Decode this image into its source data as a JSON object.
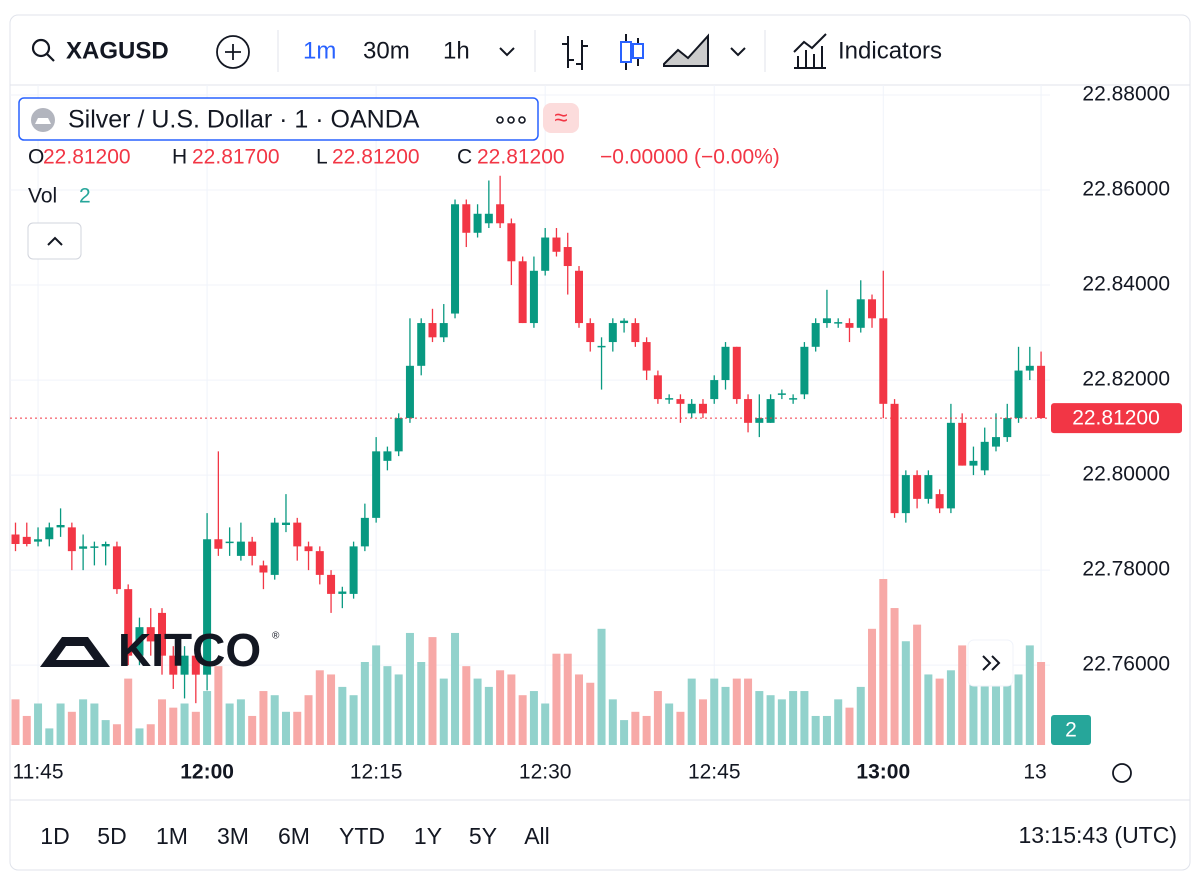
{
  "toolbar": {
    "symbol": "XAGUSD",
    "intervals": [
      "1m",
      "30m",
      "1h"
    ],
    "indicators": "Indicators"
  },
  "legend": {
    "title": "Silver / U.S. Dollar · 1 · OANDA",
    "ohlc": [
      {
        "key": "O",
        "value": "22.81200"
      },
      {
        "key": "H",
        "value": "22.81700"
      },
      {
        "key": "L",
        "value": "22.81200"
      },
      {
        "key": "C",
        "value": "22.81200"
      }
    ],
    "change": "−0.00000 (−0.00%)",
    "vol_label": "Vol",
    "vol_value": 2
  },
  "watermark": "KITCO",
  "ranges": [
    "1D",
    "5D",
    "1M",
    "3M",
    "6M",
    "YTD",
    "1Y",
    "5Y",
    "All"
  ],
  "clock": "13:15:43 (UTC)",
  "chart_data": {
    "type": "candlestick",
    "categories": [
      null,
      null,
      "11:45",
      null,
      null,
      null,
      null,
      null,
      null,
      null,
      null,
      null,
      null,
      null,
      null,
      null,
      null,
      "12:00",
      null,
      null,
      null,
      null,
      null,
      null,
      null,
      null,
      null,
      null,
      null,
      null,
      null,
      null,
      "12:15",
      null,
      null,
      null,
      null,
      null,
      null,
      null,
      null,
      null,
      null,
      null,
      null,
      null,
      null,
      "12:30",
      null,
      null,
      null,
      null,
      null,
      null,
      null,
      null,
      null,
      null,
      null,
      null,
      null,
      null,
      "12:45",
      null,
      null,
      null,
      null,
      null,
      null,
      null,
      null,
      null,
      null,
      null,
      null,
      null,
      null,
      "13:00",
      null,
      null,
      null,
      null,
      null,
      null,
      null,
      null,
      null,
      null,
      null,
      null,
      null,
      "13"
    ],
    "open": [
      22.7875,
      22.787,
      22.786,
      22.7865,
      22.789,
      22.789,
      22.7845,
      22.785,
      22.785,
      22.785,
      22.776,
      22.762,
      22.768,
      22.771,
      22.762,
      22.758,
      22.762,
      22.758,
      22.7865,
      22.786,
      22.783,
      22.786,
      22.781,
      22.779,
      22.7895,
      22.79,
      22.785,
      22.784,
      22.779,
      22.775,
      22.775,
      22.785,
      22.791,
      22.803,
      22.805,
      22.812,
      22.823,
      22.832,
      22.829,
      22.834,
      22.857,
      22.851,
      22.853,
      22.857,
      22.853,
      22.845,
      22.832,
      22.843,
      22.85,
      22.848,
      22.843,
      22.832,
      22.827,
      22.828,
      22.832,
      22.832,
      22.828,
      22.821,
      22.816,
      22.816,
      22.813,
      22.815,
      22.816,
      22.82,
      22.827,
      22.816,
      22.811,
      22.811,
      22.817,
      22.816,
      22.817,
      22.827,
      22.832,
      22.832,
      22.832,
      22.831,
      22.837,
      22.833,
      22.815,
      22.792,
      22.8,
      22.795,
      22.796,
      22.793,
      22.811,
      22.802,
      22.801,
      22.806,
      22.808,
      22.812,
      22.822,
      22.823
    ],
    "high": [
      22.79,
      22.79,
      22.789,
      22.79,
      22.793,
      22.79,
      22.7875,
      22.786,
      22.786,
      22.786,
      22.777,
      22.77,
      22.772,
      22.772,
      22.764,
      22.764,
      22.764,
      22.792,
      22.805,
      22.789,
      22.79,
      22.787,
      22.782,
      22.791,
      22.796,
      22.791,
      22.786,
      22.785,
      22.78,
      22.7765,
      22.786,
      22.794,
      22.808,
      22.806,
      22.813,
      22.833,
      22.833,
      22.835,
      22.836,
      22.858,
      22.858,
      22.857,
      22.862,
      22.863,
      22.854,
      22.846,
      22.846,
      22.852,
      22.852,
      22.851,
      22.844,
      22.833,
      22.829,
      22.833,
      22.833,
      22.833,
      22.829,
      22.822,
      22.817,
      22.817,
      22.816,
      22.816,
      22.821,
      22.828,
      22.827,
      22.817,
      22.817,
      22.817,
      22.818,
      22.817,
      22.828,
      22.833,
      22.839,
      22.833,
      22.833,
      22.841,
      22.838,
      22.843,
      22.816,
      22.801,
      22.801,
      22.801,
      22.797,
      22.815,
      22.813,
      22.806,
      22.81,
      22.813,
      22.815,
      22.827,
      22.827,
      22.826
    ],
    "low": [
      22.784,
      22.785,
      22.785,
      22.785,
      22.787,
      22.78,
      22.78,
      22.781,
      22.781,
      22.775,
      22.76,
      22.76,
      22.762,
      22.758,
      22.755,
      22.753,
      22.752,
      22.7547,
      22.783,
      22.783,
      22.782,
      22.781,
      22.776,
      22.778,
      22.788,
      22.782,
      22.78,
      22.777,
      22.771,
      22.772,
      22.774,
      22.784,
      22.79,
      22.801,
      22.804,
      22.811,
      22.821,
      22.828,
      22.828,
      22.833,
      22.848,
      22.85,
      22.852,
      22.852,
      22.84,
      22.832,
      22.831,
      22.842,
      22.846,
      22.838,
      22.831,
      22.826,
      22.818,
      22.826,
      22.83,
      22.827,
      22.82,
      22.815,
      22.815,
      22.811,
      22.812,
      22.812,
      22.815,
      22.818,
      22.815,
      22.809,
      22.808,
      22.811,
      22.816,
      22.815,
      22.816,
      22.826,
      22.831,
      22.831,
      22.828,
      22.83,
      22.831,
      22.812,
      22.791,
      22.79,
      22.793,
      22.794,
      22.792,
      22.792,
      22.802,
      22.8,
      22.8,
      22.805,
      22.807,
      22.811,
      22.82,
      22.812
    ],
    "close": [
      22.7855,
      22.7855,
      22.7865,
      22.789,
      22.7895,
      22.784,
      22.785,
      22.785,
      22.7855,
      22.776,
      22.762,
      22.768,
      22.765,
      22.762,
      22.758,
      22.762,
      22.758,
      22.7865,
      22.7845,
      22.786,
      22.786,
      22.783,
      22.7795,
      22.79,
      22.79,
      22.785,
      22.784,
      22.779,
      22.775,
      22.7755,
      22.785,
      22.791,
      22.805,
      22.805,
      22.812,
      22.823,
      22.832,
      22.829,
      22.832,
      22.857,
      22.851,
      22.855,
      22.855,
      22.853,
      22.845,
      22.832,
      22.843,
      22.85,
      22.847,
      22.844,
      22.832,
      22.828,
      22.8272,
      22.832,
      22.8325,
      22.828,
      22.822,
      22.816,
      22.8162,
      22.815,
      22.815,
      22.813,
      22.82,
      22.827,
      22.816,
      22.811,
      22.812,
      22.816,
      22.8172,
      22.8162,
      22.827,
      22.832,
      22.833,
      22.8322,
      22.831,
      22.837,
      22.833,
      22.815,
      22.792,
      22.8,
      22.795,
      22.8,
      22.793,
      22.811,
      22.802,
      22.803,
      22.807,
      22.808,
      22.812,
      22.822,
      22.823,
      22.812
    ],
    "volume": [
      1.1,
      0.7,
      1.0,
      0.4,
      1.0,
      0.8,
      1.1,
      1.0,
      0.6,
      0.5,
      1.6,
      0.4,
      0.5,
      1.1,
      0.9,
      1.0,
      0.8,
      1.3,
      1.9,
      1.0,
      1.1,
      0.7,
      1.3,
      1.2,
      0.8,
      0.8,
      1.2,
      1.8,
      1.7,
      1.4,
      1.2,
      2.0,
      2.4,
      1.9,
      1.7,
      2.7,
      2.0,
      2.6,
      1.6,
      2.7,
      1.9,
      1.6,
      1.4,
      1.8,
      1.7,
      1.2,
      1.3,
      1.0,
      2.2,
      2.2,
      1.7,
      1.5,
      2.8,
      1.1,
      0.6,
      0.8,
      0.7,
      1.3,
      1.0,
      0.8,
      1.6,
      1.1,
      1.6,
      1.4,
      1.6,
      1.6,
      1.3,
      1.2,
      1.1,
      1.3,
      1.3,
      0.7,
      0.7,
      1.1,
      0.9,
      1.4,
      2.8,
      4.0,
      3.3,
      2.5,
      2.9,
      1.7,
      1.6,
      1.8,
      2.4,
      1.9,
      1.7,
      1.9,
      2.0,
      1.7,
      2.4,
      2.0
    ],
    "ylim": [
      22.7432,
      22.8821
    ],
    "yticks": [
      {
        "value": 22.76,
        "label": "22.76000"
      },
      {
        "value": 22.78,
        "label": "22.78000"
      },
      {
        "value": 22.8,
        "label": "22.80000"
      },
      {
        "value": 22.82,
        "label": "22.82000"
      },
      {
        "value": 22.84,
        "label": "22.84000"
      },
      {
        "value": 22.86,
        "label": "22.86000"
      },
      {
        "value": 22.88,
        "label": "22.88000"
      }
    ],
    "volume_lim": [
      0,
      5
    ],
    "last_price": {
      "value": 22.812,
      "label": "22.81200"
    },
    "up_color": "#089981",
    "down_color": "#f23645",
    "volume_up_color": "#92d2cc",
    "volume_down_color": "#f7a9a7",
    "grid": true
  }
}
